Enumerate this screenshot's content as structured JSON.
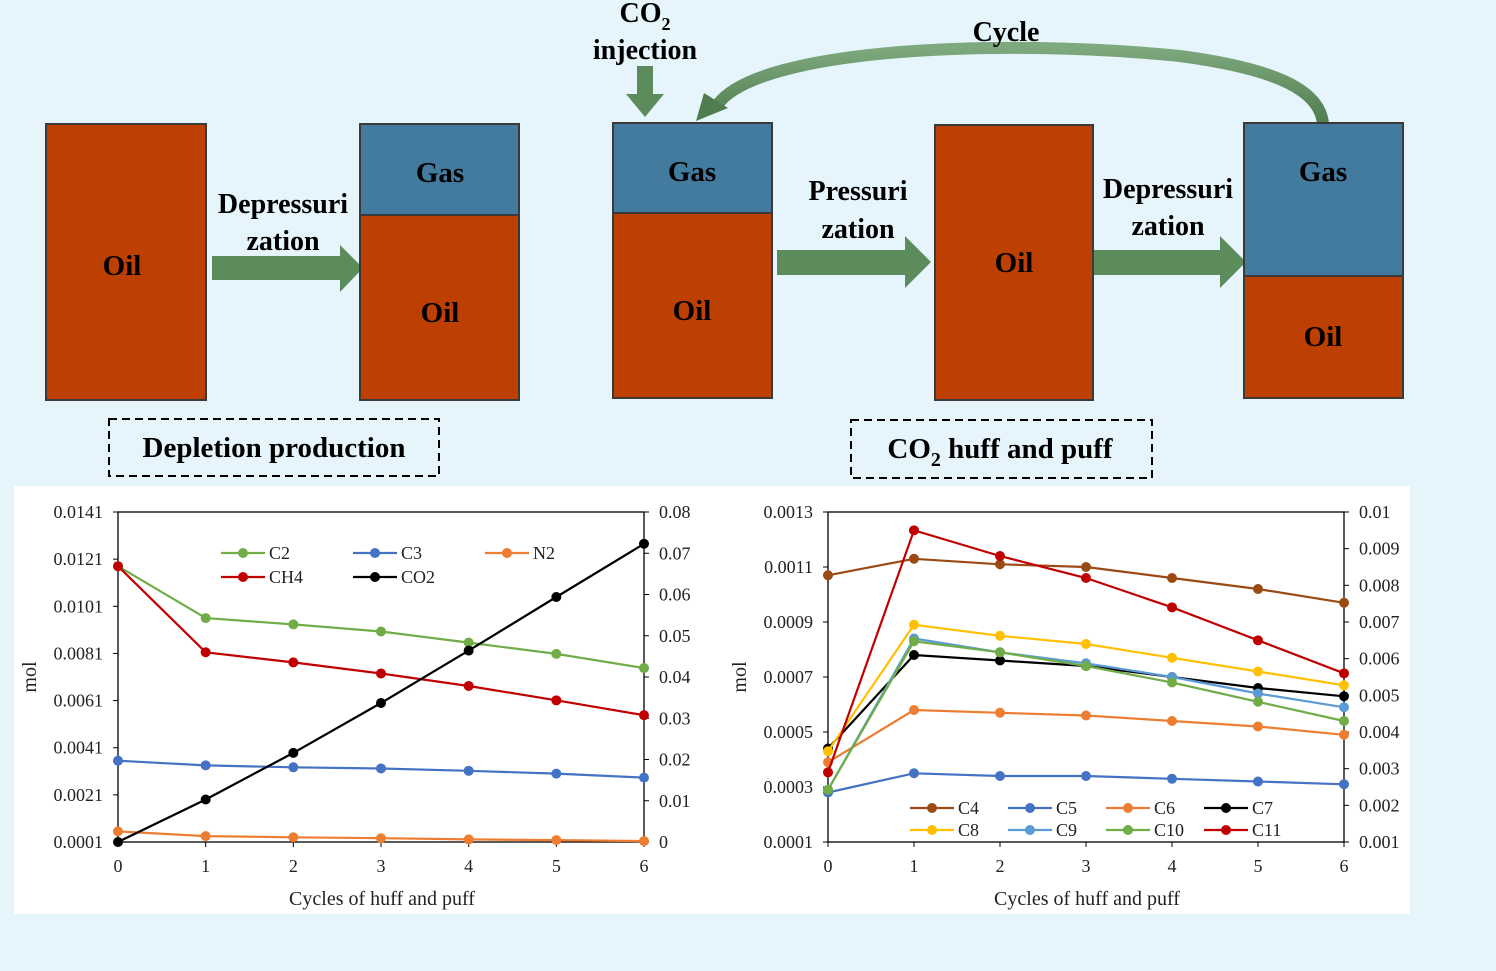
{
  "diagram": {
    "colors": {
      "oil": "#bd3f02",
      "gas": "#427b9d",
      "arrow": "#5c8b5c",
      "outline": "#3a3a3a"
    },
    "depletion": {
      "oil_label": "Oil",
      "gas_label": "Gas",
      "arrow_label_1": "Depressuri",
      "arrow_label_2": "zation",
      "caption": "Depletion production"
    },
    "huff_puff": {
      "injection_label_co": "CO",
      "injection_label_sub": "2",
      "injection_label_2": "injection",
      "cycle_label": "Cycle",
      "gas_label": "Gas",
      "oil_label": "Oil",
      "pressurization_1": "Pressuri",
      "pressurization_2": "zation",
      "depressurization_1": "Depressuri",
      "depressurization_2": "zation",
      "caption_co": "CO",
      "caption_sub": "2",
      "caption_rest": " huff and puff"
    }
  },
  "chart_data": [
    {
      "type": "line",
      "title": "",
      "xlabel": "Cycles of huff and puff",
      "ylabel": "mol",
      "x": [
        0,
        1,
        2,
        3,
        4,
        5,
        6
      ],
      "xlim": [
        0,
        6
      ],
      "ylim_left": [
        0.0001,
        0.0141
      ],
      "ylim_right": [
        0,
        0.08
      ],
      "left_ticks": [
        "0.0141",
        "0.0121",
        "0.0101",
        "0.0081",
        "0.0061",
        "0.0041",
        "0.0021",
        "0.0001"
      ],
      "right_ticks": [
        "0.08",
        "0.07",
        "0.06",
        "0.05",
        "0.04",
        "0.03",
        "0.02",
        "0.01",
        "0"
      ],
      "series": [
        {
          "name": "C2",
          "color": "#70ad47",
          "axis": "left",
          "values": [
            0.0118,
            0.0096,
            0.00933,
            0.00903,
            0.00856,
            0.00808,
            0.00748
          ]
        },
        {
          "name": "C3",
          "color": "#4472c4",
          "axis": "left",
          "values": [
            0.00355,
            0.00335,
            0.00327,
            0.00322,
            0.00312,
            0.003,
            0.00283
          ]
        },
        {
          "name": "N2",
          "color": "#ed7d31",
          "axis": "left",
          "values": [
            0.00055,
            0.00035,
            0.0003,
            0.00026,
            0.00021,
            0.00018,
            0.00014
          ]
        },
        {
          "name": "CH4",
          "color": "#c00000",
          "axis": "left",
          "values": [
            0.0118,
            0.00815,
            0.00772,
            0.00725,
            0.00672,
            0.00611,
            0.00548
          ]
        },
        {
          "name": "CO2",
          "color": "#000000",
          "axis": "right",
          "values": [
            0,
            0.0103,
            0.0216,
            0.0337,
            0.0464,
            0.0594,
            0.0723
          ]
        }
      ],
      "legend": {
        "position": "top-center",
        "order": [
          "C2",
          "C3",
          "N2",
          "CH4",
          "CO2"
        ]
      }
    },
    {
      "type": "line",
      "title": "",
      "xlabel": "Cycles of huff and puff",
      "ylabel": "mol",
      "x": [
        0,
        1,
        2,
        3,
        4,
        5,
        6
      ],
      "xlim": [
        0,
        6
      ],
      "ylim_left": [
        0.0001,
        0.0013
      ],
      "ylim_right": [
        0.001,
        0.01
      ],
      "left_ticks": [
        "0.0013",
        "0.0011",
        "0.0009",
        "0.0007",
        "0.0005",
        "0.0003",
        "0.0001"
      ],
      "right_ticks": [
        "0.01",
        "0.009",
        "0.008",
        "0.007",
        "0.006",
        "0.005",
        "0.004",
        "0.003",
        "0.002",
        "0.001"
      ],
      "series": [
        {
          "name": "C4",
          "color": "#9c4a14",
          "axis": "left",
          "values": [
            0.00107,
            0.00113,
            0.00111,
            0.0011,
            0.00106,
            0.00102,
            0.00097
          ]
        },
        {
          "name": "C5",
          "color": "#4472c4",
          "axis": "left",
          "values": [
            0.00028,
            0.00035,
            0.00034,
            0.00034,
            0.00033,
            0.00032,
            0.00031
          ]
        },
        {
          "name": "C6",
          "color": "#ed7d31",
          "axis": "left",
          "values": [
            0.00039,
            0.00058,
            0.00057,
            0.00056,
            0.00054,
            0.00052,
            0.00049
          ]
        },
        {
          "name": "C7",
          "color": "#000000",
          "axis": "left",
          "values": [
            0.00044,
            0.00078,
            0.00076,
            0.00074,
            0.0007,
            0.00066,
            0.00063
          ]
        },
        {
          "name": "C8",
          "color": "#ffc000",
          "axis": "left",
          "values": [
            0.00043,
            0.00089,
            0.00085,
            0.00082,
            0.00077,
            0.00072,
            0.00067
          ]
        },
        {
          "name": "C9",
          "color": "#5b9bd5",
          "axis": "left",
          "values": [
            0.00029,
            0.00084,
            0.00079,
            0.00075,
            0.0007,
            0.00064,
            0.00059
          ]
        },
        {
          "name": "C10",
          "color": "#70ad47",
          "axis": "left",
          "values": [
            0.00029,
            0.00083,
            0.00079,
            0.00074,
            0.00068,
            0.00061,
            0.00054
          ]
        },
        {
          "name": "C11",
          "color": "#c00000",
          "axis": "right",
          "values": [
            0.0029,
            0.0095,
            0.0088,
            0.0082,
            0.0074,
            0.0065,
            0.0056
          ]
        }
      ],
      "legend": {
        "position": "bottom-center",
        "order": [
          "C4",
          "C5",
          "C6",
          "C7",
          "C8",
          "C9",
          "C10",
          "C11"
        ]
      }
    }
  ]
}
